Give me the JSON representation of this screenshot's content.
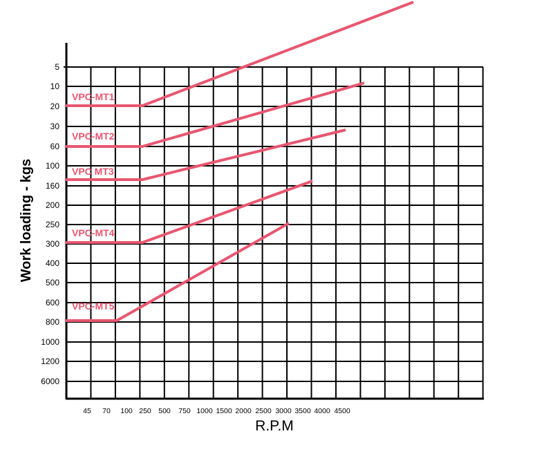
{
  "chart_data": {
    "type": "line",
    "title": "",
    "xlabel": "R.P.M",
    "ylabel": "Work loading - kgs",
    "x_tick_labels": [
      "45",
      "70",
      "100",
      "250",
      "500",
      "750",
      "1000",
      "1500",
      "2000",
      "2500",
      "3000",
      "3500",
      "4000",
      "4500"
    ],
    "y_tick_labels": [
      "5",
      "10",
      "20",
      "30",
      "60",
      "100",
      "160",
      "200",
      "250",
      "300",
      "400",
      "500",
      "600",
      "800",
      "1000",
      "1200",
      "6000"
    ],
    "y_axis_inverted": true,
    "grid": true,
    "line_color": "#e8566f",
    "series": [
      {
        "name": "VPC-MT1",
        "points": [
          [
            "0",
            "20"
          ],
          [
            "250",
            "20"
          ],
          [
            "5000+",
            "<5"
          ]
        ]
      },
      {
        "name": "VPC-MT2",
        "points": [
          [
            "0",
            "60"
          ],
          [
            "250",
            "60"
          ],
          [
            "~5000",
            "10"
          ]
        ]
      },
      {
        "name": "VPC MT3",
        "points": [
          [
            "0",
            "160"
          ],
          [
            "250",
            "160"
          ],
          [
            "~4600",
            "30"
          ]
        ]
      },
      {
        "name": "VPC-MT4",
        "points": [
          [
            "0",
            "300"
          ],
          [
            "250",
            "300"
          ],
          [
            "~3800",
            "160"
          ]
        ]
      },
      {
        "name": "VPC-MT5",
        "points": [
          [
            "0",
            "800"
          ],
          [
            "~70",
            "800"
          ],
          [
            "3000",
            "250"
          ]
        ]
      }
    ]
  }
}
